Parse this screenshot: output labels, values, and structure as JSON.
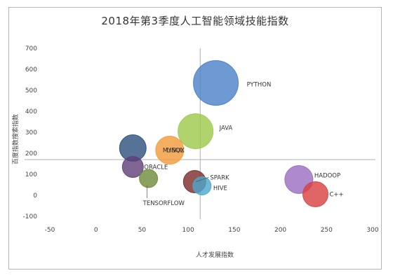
{
  "chart_data": {
    "type": "scatter",
    "title": "2018年第3季度人工智能领域技能指数",
    "xlabel": "人才发展指数",
    "ylabel": "百度指数搜索指数",
    "xlim": [
      -50,
      300
    ],
    "ylim": [
      -100,
      700
    ],
    "xticks": [
      -50,
      0,
      50,
      100,
      150,
      200,
      250,
      300
    ],
    "yticks": [
      -100,
      0,
      100,
      200,
      300,
      400,
      500,
      600,
      700
    ],
    "quadrant_x": 113,
    "quadrant_y": 170,
    "points": [
      {
        "label": "PYTHON",
        "x": 130,
        "y": 535,
        "size": 32,
        "color": "#4a80c8"
      },
      {
        "label": "JAVA",
        "x": 108,
        "y": 305,
        "size": 25,
        "color": "#9dc84a"
      },
      {
        "label": "MYSQL",
        "x": 80,
        "y": 215,
        "size": 20,
        "color": "#f39a3a"
      },
      {
        "label": "LINUX",
        "x": 40,
        "y": 225,
        "size": 19,
        "color": "#2c4f7c"
      },
      {
        "label": "ORACLE",
        "x": 40,
        "y": 135,
        "size": 15,
        "color": "#5e3f77"
      },
      {
        "label": "TENSORFLOW",
        "x": 57,
        "y": 80,
        "size": 13,
        "color": "#6e8a38"
      },
      {
        "label": "SPARK",
        "x": 107,
        "y": 65,
        "size": 16,
        "color": "#7a2a2a"
      },
      {
        "label": "HIVE",
        "x": 115,
        "y": 45,
        "size": 13,
        "color": "#4aa8cc"
      },
      {
        "label": "HADOOP",
        "x": 220,
        "y": 75,
        "size": 20,
        "color": "#9a6cbf"
      },
      {
        "label": "C++",
        "x": 238,
        "y": 5,
        "size": 18,
        "color": "#d84040"
      }
    ]
  }
}
